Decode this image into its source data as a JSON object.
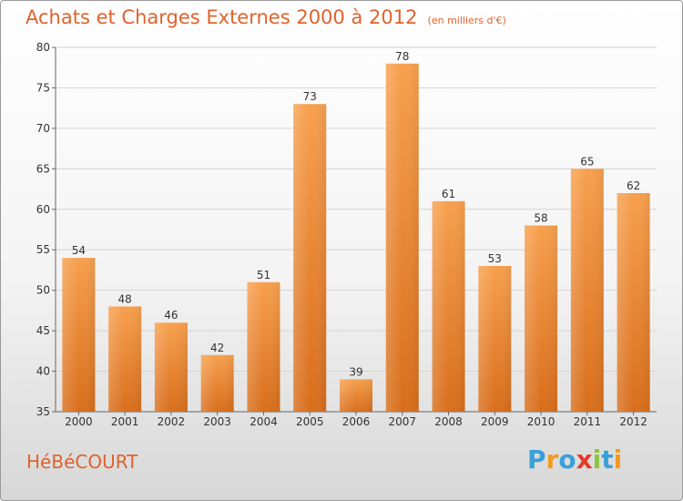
{
  "chart_data": {
    "type": "bar",
    "title": "Achats et Charges Externes 2000 à 2012",
    "subtitle": "(en milliers d'€)",
    "categories": [
      "2000",
      "2001",
      "2002",
      "2003",
      "2004",
      "2005",
      "2006",
      "2007",
      "2008",
      "2009",
      "2010",
      "2011",
      "2012"
    ],
    "values": [
      54,
      48,
      46,
      42,
      51,
      73,
      39,
      78,
      61,
      53,
      58,
      65,
      62
    ],
    "ylim": [
      35,
      80
    ],
    "yticks": [
      35,
      40,
      45,
      50,
      55,
      60,
      65,
      70,
      75,
      80
    ],
    "grid": true,
    "bar_color": "#f08a36"
  },
  "commune": "HéBéCOURT",
  "logo": {
    "text": "Proxiti",
    "letters": [
      "P",
      "r",
      "o",
      "x",
      "i",
      "t",
      "i"
    ],
    "colors": [
      "#3aa0d8",
      "#f39a1e",
      "#3aa0d8",
      "#e53b2c",
      "#8cc63f",
      "#3aa0d8",
      "#f39a1e"
    ]
  },
  "accent_color": "#e0622c"
}
